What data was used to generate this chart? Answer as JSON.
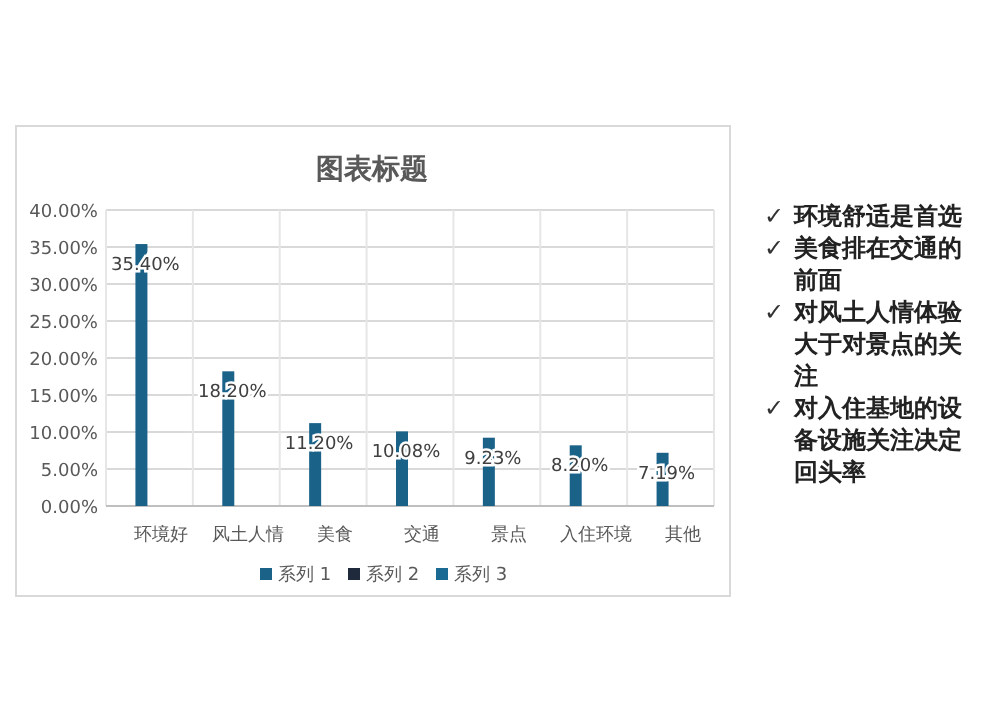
{
  "chart_data": {
    "type": "bar",
    "title": "图表标题",
    "categories": [
      "环境好",
      "风土人情",
      "美食",
      "交通",
      "景点",
      "入住环境",
      "其他"
    ],
    "series": [
      {
        "name": "系列 1",
        "color": "#1b6289",
        "values": [
          35.4,
          18.2,
          11.2,
          10.08,
          9.23,
          8.2,
          7.19
        ],
        "value_labels": [
          "35.40%",
          "18.20%",
          "11.20%",
          "10.08%",
          "9.23%",
          "8.20%",
          "7.19%"
        ]
      },
      {
        "name": "系列 2",
        "color": "#1f2a3c",
        "values": [
          null,
          null,
          null,
          null,
          null,
          null,
          null
        ]
      },
      {
        "name": "系列 3",
        "color": "#1b6a94",
        "values": [
          null,
          null,
          null,
          null,
          null,
          null,
          null
        ]
      }
    ],
    "ylim": [
      0,
      40
    ],
    "yticks": [
      {
        "value": 0,
        "label": "0.00%"
      },
      {
        "value": 5,
        "label": "5.00%"
      },
      {
        "value": 10,
        "label": "10.00%"
      },
      {
        "value": 15,
        "label": "15.00%"
      },
      {
        "value": 20,
        "label": "20.00%"
      },
      {
        "value": 25,
        "label": "25.00%"
      },
      {
        "value": 30,
        "label": "30.00%"
      },
      {
        "value": 35,
        "label": "35.00%"
      },
      {
        "value": 40,
        "label": "40.00%"
      }
    ],
    "grid": true,
    "legend": "bottom",
    "annotations": [
      "✓ 环境舒适是首选",
      "✓ 美食排在交通的前面",
      "✓ 对风土人情体验大于对景点的关注",
      "✓ 对入住基地的设备设施关注决定回头率"
    ]
  }
}
